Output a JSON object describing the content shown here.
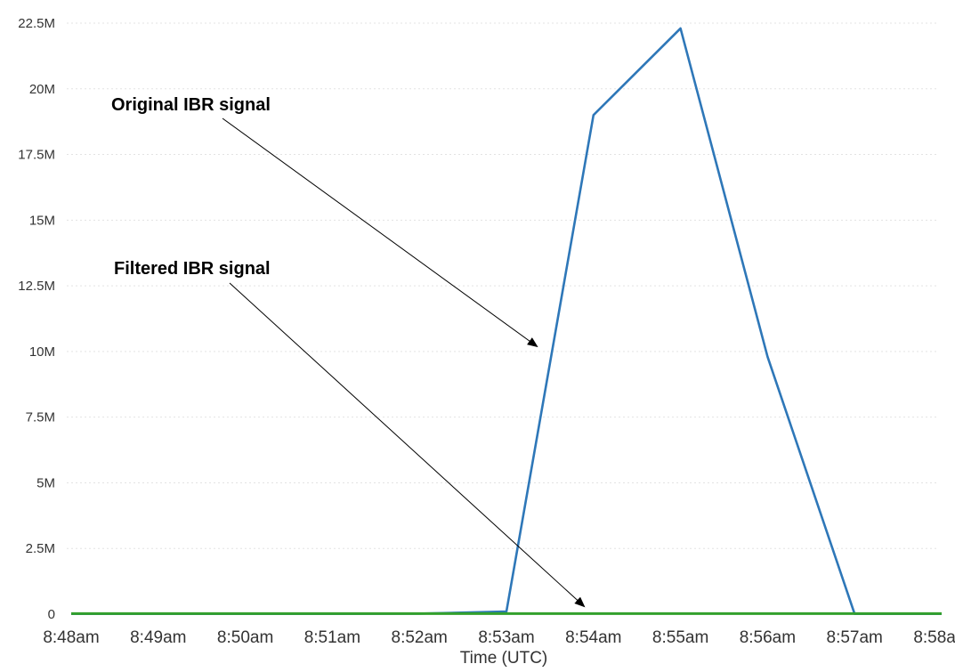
{
  "chart_data": {
    "type": "line",
    "title": "",
    "xlabel": "Time (UTC)",
    "ylabel": "",
    "categories": [
      "8:48am",
      "8:49am",
      "8:50am",
      "8:51am",
      "8:52am",
      "8:53am",
      "8:54am",
      "8:55am",
      "8:56am",
      "8:57am",
      "8:58am"
    ],
    "y_ticks": [
      "0",
      "2.5M",
      "5M",
      "7.5M",
      "10M",
      "12.5M",
      "15M",
      "17.5M",
      "20M",
      "22.5M"
    ],
    "ylim": [
      0,
      22500000
    ],
    "grid": true,
    "series": [
      {
        "name": "Original IBR signal",
        "color": "#2e77b8",
        "values": [
          10000,
          10000,
          10000,
          10000,
          20000,
          100000,
          19000000,
          22300000,
          9800000,
          10000,
          10000
        ]
      },
      {
        "name": "Filtered IBR signal",
        "color": "#33a02c",
        "values": [
          20000,
          20000,
          20000,
          20000,
          20000,
          20000,
          20000,
          20000,
          20000,
          20000,
          20000
        ]
      }
    ],
    "annotations": [
      {
        "text": "Original IBR signal",
        "series": "Original IBR signal"
      },
      {
        "text": "Filtered IBR signal",
        "series": "Filtered IBR signal"
      }
    ]
  }
}
